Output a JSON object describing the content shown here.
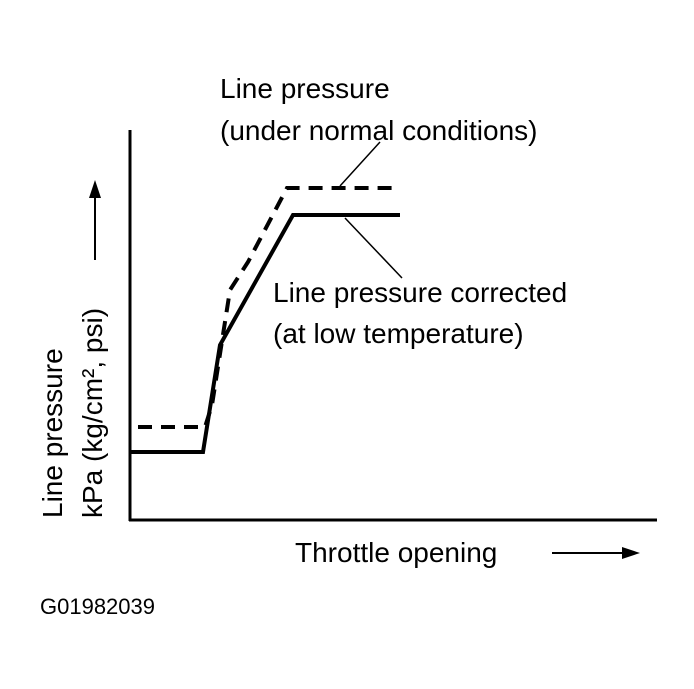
{
  "callouts": [
    {
      "title": "Line pressure",
      "subtitle": "(under normal conditions)"
    },
    {
      "title": "Line pressure corrected",
      "subtitle": "(at low temperature)"
    }
  ],
  "y_axis": {
    "label": "Line pressure",
    "units": "kPa (kg/cm², psi)"
  },
  "x_axis": {
    "label": "Throttle opening"
  },
  "figure_id": "G01982039"
}
